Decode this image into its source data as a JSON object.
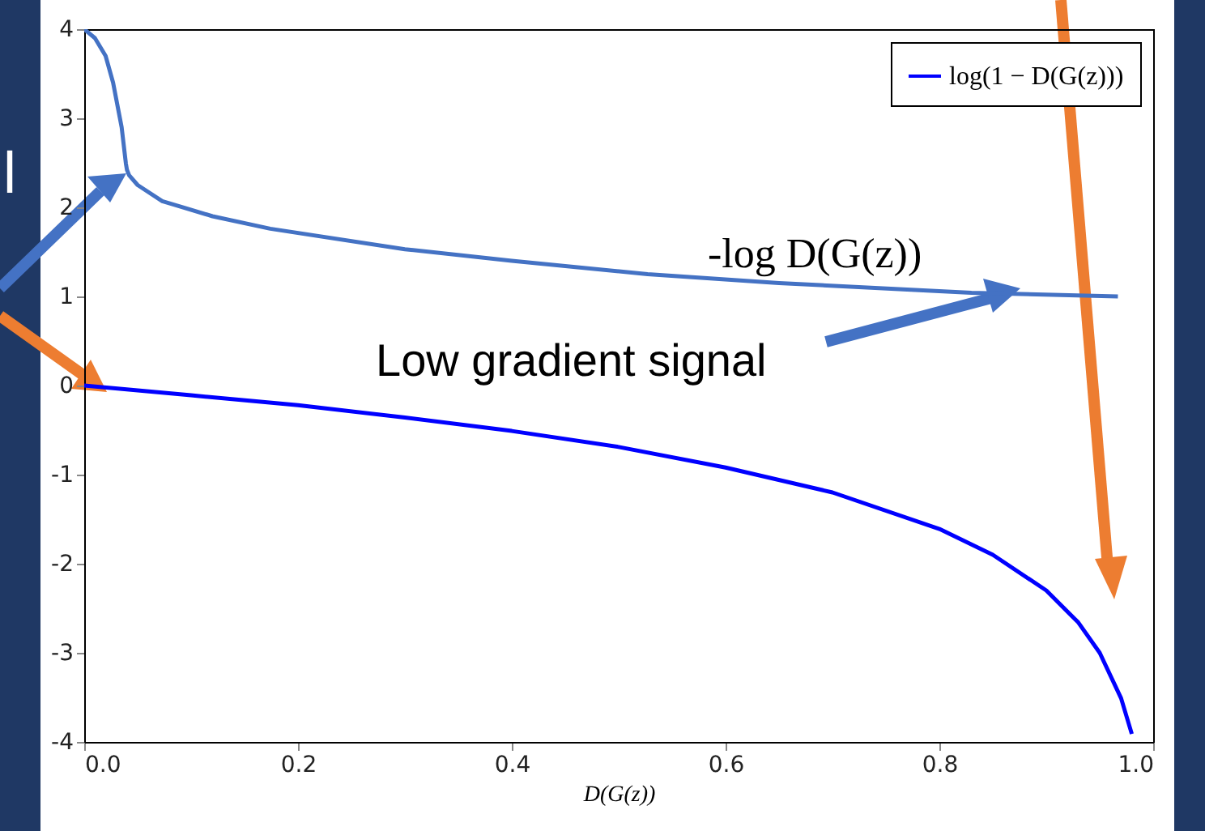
{
  "chart_data": {
    "type": "line",
    "xlabel": "D(G(z))",
    "xlim": [
      0,
      1
    ],
    "ylim": [
      -4,
      4
    ],
    "xticks": [
      {
        "value": 0,
        "label": "0.0"
      },
      {
        "value": 0.2,
        "label": "0.2"
      },
      {
        "value": 0.4,
        "label": "0.4"
      },
      {
        "value": 0.6,
        "label": "0.6"
      },
      {
        "value": 0.8,
        "label": "0.8"
      },
      {
        "value": 1,
        "label": "1.0"
      }
    ],
    "yticks": [
      -4,
      -3,
      -2,
      -1,
      0,
      1,
      2,
      3,
      4
    ],
    "series": [
      {
        "name": "log(1 − D(G(z)))",
        "color": "#0000ff",
        "x": [
          0,
          0.1,
          0.2,
          0.3,
          0.4,
          0.5,
          0.6,
          0.7,
          0.8,
          0.85,
          0.9,
          0.93,
          0.95,
          0.97,
          0.98
        ],
        "values": [
          0,
          -0.11,
          -0.22,
          -0.36,
          -0.51,
          -0.69,
          -0.92,
          -1.2,
          -1.61,
          -1.9,
          -2.3,
          -2.66,
          -3.0,
          -3.51,
          -3.91
        ]
      },
      {
        "color": "#4472c4",
        "x": [
          0,
          0.01,
          0.02,
          0.027,
          0.035,
          0.039,
          0.04,
          0.042,
          0.05,
          0.073,
          0.12,
          0.174,
          0.3,
          0.4,
          0.527,
          0.65,
          0.83,
          0.967
        ],
        "values": [
          4,
          3.9,
          3.7,
          3.4,
          2.9,
          2.49,
          2.42,
          2.36,
          2.25,
          2.07,
          1.9,
          1.76,
          1.53,
          1.4,
          1.25,
          1.15,
          1.04,
          1.0
        ]
      }
    ],
    "legend": "top right",
    "grid": false,
    "annotations": [
      "-log D(G(z))",
      "Low gradient signal",
      "l"
    ]
  }
}
